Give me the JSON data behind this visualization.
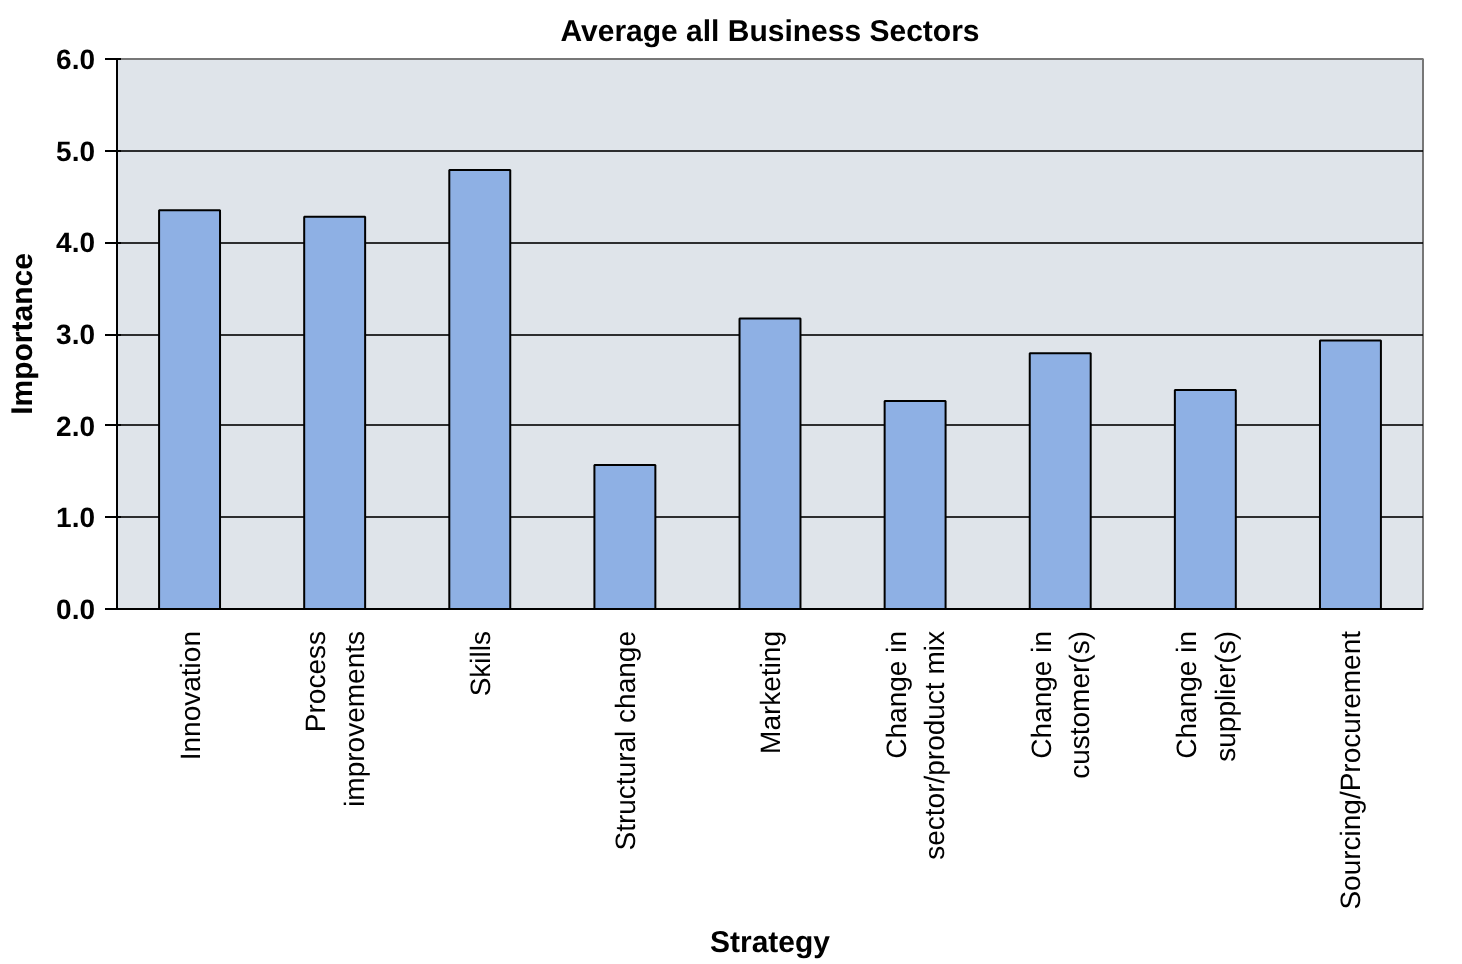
{
  "chart_data": {
    "type": "bar",
    "title": "Average all Business Sectors",
    "xlabel": "Strategy",
    "ylabel": "Importance",
    "categories": [
      "Innovation",
      "Process\nimprovements",
      "Skills",
      "Structural change",
      "Marketing",
      "Change in\nsector/product mix",
      "Change in\ncustomer(s)",
      "Change in\nsupplier(s)",
      "Sourcing/Procurement"
    ],
    "values": [
      4.35,
      4.28,
      4.79,
      1.57,
      3.17,
      2.27,
      2.79,
      2.39,
      2.93
    ],
    "color": "#8eb0e4",
    "ylim": [
      0,
      6
    ],
    "yticks": [
      {
        "value": 0,
        "label": "0.0"
      },
      {
        "value": 1,
        "label": "1.0"
      },
      {
        "value": 2,
        "label": "2.0"
      },
      {
        "value": 3,
        "label": "3.0"
      },
      {
        "value": 4,
        "label": "4.0"
      },
      {
        "value": 5,
        "label": "5.0"
      },
      {
        "value": 6,
        "label": "6.0"
      }
    ],
    "grid": "y"
  }
}
